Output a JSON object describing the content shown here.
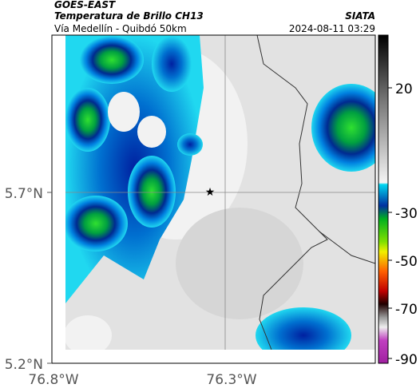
{
  "header": {
    "source": "GOES-EAST",
    "title": "Temperatura de Brillo CH13",
    "subtitle": "Vía Medellín - Quibdó 50km",
    "brand": "SIATA",
    "datetime": "2024-08-11 03:29"
  },
  "axes": {
    "y_labels": [
      "5.7°N",
      "5.2°N"
    ],
    "x_labels": [
      "76.8°W",
      "76.3°W"
    ]
  },
  "colorbar": {
    "ticks": [
      20,
      -30,
      -50,
      -70,
      -90
    ]
  }
}
